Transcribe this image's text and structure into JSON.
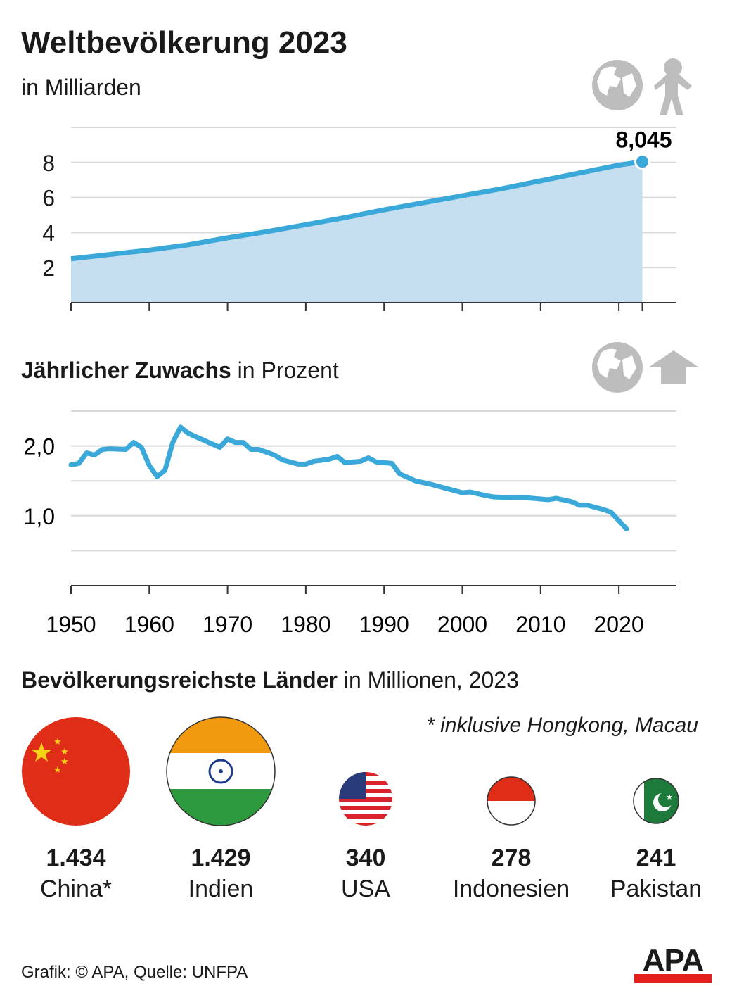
{
  "title": "Weltbevölkerung 2023",
  "subtitle": "in Milliarden",
  "growth_title_bold": "Jährlicher Zuwachs",
  "growth_title_rest": " in Prozent",
  "countries_title_bold": "Bevölkerungsreichste Länder",
  "countries_title_rest": " in Millionen, 2023",
  "note": "* inklusive Hongkong, Macau",
  "source": "Grafik: © APA, Quelle: UNFPA",
  "logo": "APA",
  "icons": [
    "globe-icon",
    "person-icon",
    "globe-icon",
    "arrow-up-icon"
  ],
  "colors": {
    "line": "#3aa8d8",
    "area": "#c5dff0",
    "grid": "#d9d9d9",
    "icon": "#bdbdbd",
    "logo_red": "#e3211c"
  },
  "chart_data": [
    {
      "type": "area",
      "title": "Weltbevölkerung 2023",
      "ylabel": "in Milliarden",
      "ylim": [
        0,
        10
      ],
      "yticks": [
        "2",
        "4",
        "6",
        "8"
      ],
      "x": [
        1950,
        1955,
        1960,
        1965,
        1970,
        1975,
        1980,
        1985,
        1990,
        1995,
        2000,
        2005,
        2010,
        2015,
        2020,
        2023
      ],
      "values": [
        2.5,
        2.75,
        3.0,
        3.3,
        3.7,
        4.05,
        4.45,
        4.85,
        5.3,
        5.7,
        6.1,
        6.5,
        6.95,
        7.4,
        7.85,
        8.045
      ],
      "annotation": "8,045"
    },
    {
      "type": "line",
      "title": "Jährlicher Zuwachs in Prozent",
      "ylim": [
        0,
        2.5
      ],
      "yticks": [
        "1,0",
        "2,0"
      ],
      "xticks": [
        "1950",
        "1960",
        "1970",
        "1980",
        "1990",
        "2000",
        "2010",
        "2020"
      ],
      "x": [
        1950,
        1951,
        1952,
        1953,
        1954,
        1955,
        1957,
        1958,
        1959,
        1960,
        1961,
        1962,
        1963,
        1964,
        1965,
        1967,
        1969,
        1970,
        1971,
        1972,
        1973,
        1974,
        1976,
        1977,
        1978,
        1979,
        1980,
        1981,
        1983,
        1984,
        1985,
        1986,
        1987,
        1988,
        1989,
        1991,
        1992,
        1994,
        1996,
        1998,
        2000,
        2001,
        2003,
        2004,
        2006,
        2008,
        2010,
        2011,
        2012,
        2014,
        2015,
        2016,
        2018,
        2019,
        2021
      ],
      "values": [
        1.73,
        1.75,
        1.9,
        1.87,
        1.95,
        1.96,
        1.95,
        2.05,
        1.98,
        1.72,
        1.56,
        1.65,
        2.05,
        2.27,
        2.18,
        2.08,
        1.98,
        2.1,
        2.05,
        2.05,
        1.95,
        1.95,
        1.87,
        1.8,
        1.77,
        1.74,
        1.74,
        1.78,
        1.81,
        1.85,
        1.76,
        1.77,
        1.78,
        1.83,
        1.77,
        1.75,
        1.6,
        1.5,
        1.45,
        1.39,
        1.33,
        1.34,
        1.29,
        1.27,
        1.26,
        1.26,
        1.24,
        1.23,
        1.25,
        1.2,
        1.15,
        1.15,
        1.09,
        1.05,
        0.81
      ]
    }
  ],
  "countries": [
    {
      "value": "1.434",
      "name": "China*",
      "flag": "china"
    },
    {
      "value": "1.429",
      "name": "Indien",
      "flag": "india"
    },
    {
      "value": "340",
      "name": "USA",
      "flag": "usa"
    },
    {
      "value": "278",
      "name": "Indonesien",
      "flag": "indonesia"
    },
    {
      "value": "241",
      "name": "Pakistan",
      "flag": "pakistan"
    }
  ]
}
